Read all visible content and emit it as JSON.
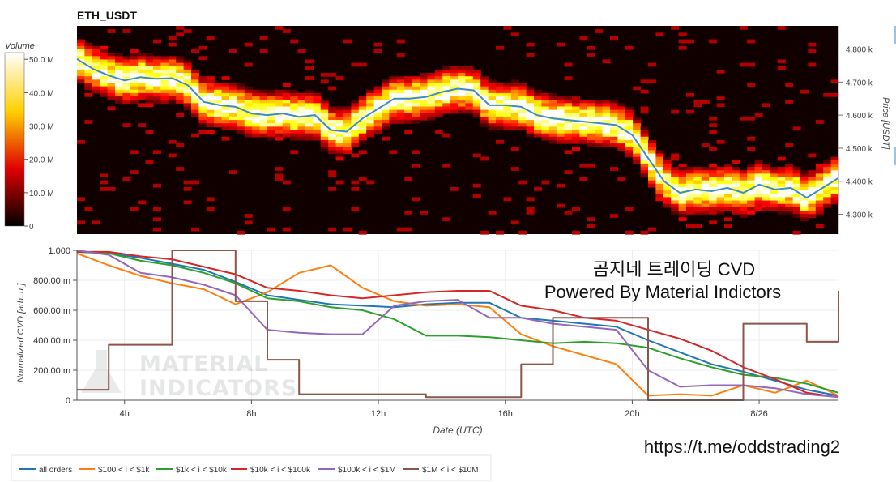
{
  "heatmap": {
    "title": "ETH_USDT",
    "colorbar_label": "Volume",
    "colorbar_ticks": [
      "50.0 M",
      "40.0 M",
      "30.0 M",
      "20.0 M",
      "10.0 M",
      "0"
    ],
    "price_label": "Price [USDT]",
    "price_ticks": [
      "4.800 k",
      "4.700 k",
      "4.600 k",
      "4.500 k",
      "4.400 k",
      "4.300 k"
    ]
  },
  "cvd": {
    "ylabel": "Normalized CVD [arb. u.]",
    "xlabel": "Date (UTC)",
    "yticks": [
      "1.000",
      "800.00 m",
      "600.00 m",
      "400.00 m",
      "200.00 m",
      "0"
    ],
    "xticks": [
      "4h",
      "8h",
      "12h",
      "16h",
      "20h",
      "8/26"
    ]
  },
  "overlay": {
    "title_line1": "곰지네 트레이딩 CVD",
    "title_line2": "Powered By Material Indictors",
    "link": "https://t.me/oddstrading2",
    "watermark_line1": "MATERIAL",
    "watermark_line2": "INDICATORS"
  },
  "colors": {
    "all_orders": "#1f77b4",
    "100_1k": "#ff7f0e",
    "1k_10k": "#2ca02c",
    "10k_100k": "#d62728",
    "100k_1M": "#9467bd",
    "1M_10M": "#8c564b",
    "price_line": "#3d8bc9"
  },
  "chart_data": [
    {
      "type": "heatmap",
      "title": "ETH_USDT",
      "ylabel": "Price [USDT]",
      "colorbar": "Volume",
      "ylim": [
        4240,
        4870
      ],
      "color_range": [
        0,
        52000000
      ],
      "price_series": {
        "x_hours": [
          2.5,
          3.0,
          3.5,
          4.0,
          4.5,
          5.0,
          5.5,
          6.0,
          6.5,
          7.0,
          7.5,
          8.0,
          8.5,
          9.0,
          9.5,
          10.0,
          10.5,
          11.0,
          11.5,
          12.0,
          12.5,
          13.0,
          13.5,
          14.0,
          14.5,
          15.0,
          15.5,
          16.0,
          16.5,
          17.0,
          17.5,
          18.0,
          18.5,
          19.0,
          19.5,
          20.0,
          20.5,
          21.0,
          21.5,
          22.0,
          22.5,
          23.0,
          23.5,
          24.0,
          24.5,
          25.0,
          25.5,
          26.5
        ],
        "price": [
          4770,
          4740,
          4720,
          4705,
          4715,
          4710,
          4712,
          4690,
          4640,
          4630,
          4625,
          4605,
          4600,
          4605,
          4595,
          4600,
          4555,
          4550,
          4590,
          4620,
          4650,
          4650,
          4655,
          4670,
          4680,
          4675,
          4630,
          4630,
          4625,
          4600,
          4590,
          4585,
          4580,
          4575,
          4570,
          4540,
          4470,
          4400,
          4365,
          4375,
          4370,
          4380,
          4365,
          4390,
          4375,
          4380,
          4350,
          4410
        ]
      }
    },
    {
      "type": "line",
      "xlabel": "Date (UTC)",
      "ylabel": "Normalized CVD [arb. u.]",
      "x_ticks": [
        "4h",
        "8h",
        "12h",
        "16h",
        "20h",
        "8/26"
      ],
      "xlim": [
        2.5,
        26.5
      ],
      "ylim": [
        0,
        1
      ],
      "x": [
        2.5,
        3.5,
        4.5,
        5.5,
        6.5,
        7.5,
        8.5,
        9.5,
        10.5,
        11.5,
        12.5,
        13.5,
        14.5,
        15.5,
        16.5,
        17.5,
        18.5,
        19.5,
        20.5,
        21.5,
        22.5,
        23.5,
        24.5,
        25.5,
        26.5
      ],
      "series": [
        {
          "name": "all orders",
          "values": [
            0.99,
            0.98,
            0.95,
            0.91,
            0.87,
            0.79,
            0.7,
            0.67,
            0.64,
            0.63,
            0.62,
            0.64,
            0.65,
            0.65,
            0.55,
            0.53,
            0.51,
            0.49,
            0.4,
            0.32,
            0.24,
            0.19,
            0.13,
            0.07,
            0.03
          ]
        },
        {
          "name": "$100 < i < $1k",
          "values": [
            0.98,
            0.9,
            0.83,
            0.78,
            0.74,
            0.64,
            0.72,
            0.85,
            0.9,
            0.75,
            0.66,
            0.63,
            0.64,
            0.62,
            0.44,
            0.36,
            0.3,
            0.24,
            0.03,
            0.04,
            0.03,
            0.1,
            0.05,
            0.13,
            0.03
          ]
        },
        {
          "name": "$1k < i < $10k",
          "values": [
            0.99,
            0.98,
            0.93,
            0.9,
            0.85,
            0.78,
            0.68,
            0.66,
            0.62,
            0.6,
            0.54,
            0.43,
            0.43,
            0.42,
            0.4,
            0.38,
            0.39,
            0.38,
            0.35,
            0.28,
            0.22,
            0.17,
            0.15,
            0.11,
            0.05
          ]
        },
        {
          "name": "$10k < i < $100k",
          "values": [
            0.99,
            0.99,
            0.96,
            0.94,
            0.89,
            0.84,
            0.75,
            0.73,
            0.7,
            0.68,
            0.7,
            0.72,
            0.73,
            0.73,
            0.63,
            0.6,
            0.55,
            0.53,
            0.47,
            0.41,
            0.33,
            0.22,
            0.14,
            0.05,
            0.02
          ]
        },
        {
          "name": "$100k < i < $1M",
          "values": [
            1.0,
            0.97,
            0.85,
            0.82,
            0.77,
            0.7,
            0.47,
            0.45,
            0.44,
            0.44,
            0.63,
            0.66,
            0.67,
            0.55,
            0.55,
            0.51,
            0.49,
            0.47,
            0.2,
            0.09,
            0.1,
            0.1,
            0.08,
            0.04,
            0.02
          ]
        },
        {
          "name": "$1M < i < $10M",
          "values": [
            0.07,
            0.37,
            0.37,
            1.0,
            1.0,
            0.66,
            0.27,
            0.04,
            0.04,
            0.04,
            0.04,
            0.02,
            0.02,
            0.02,
            0.24,
            0.55,
            0.55,
            0.55,
            0.0,
            0.0,
            0.0,
            0.51,
            0.51,
            0.39,
            0.73
          ]
        }
      ]
    }
  ]
}
